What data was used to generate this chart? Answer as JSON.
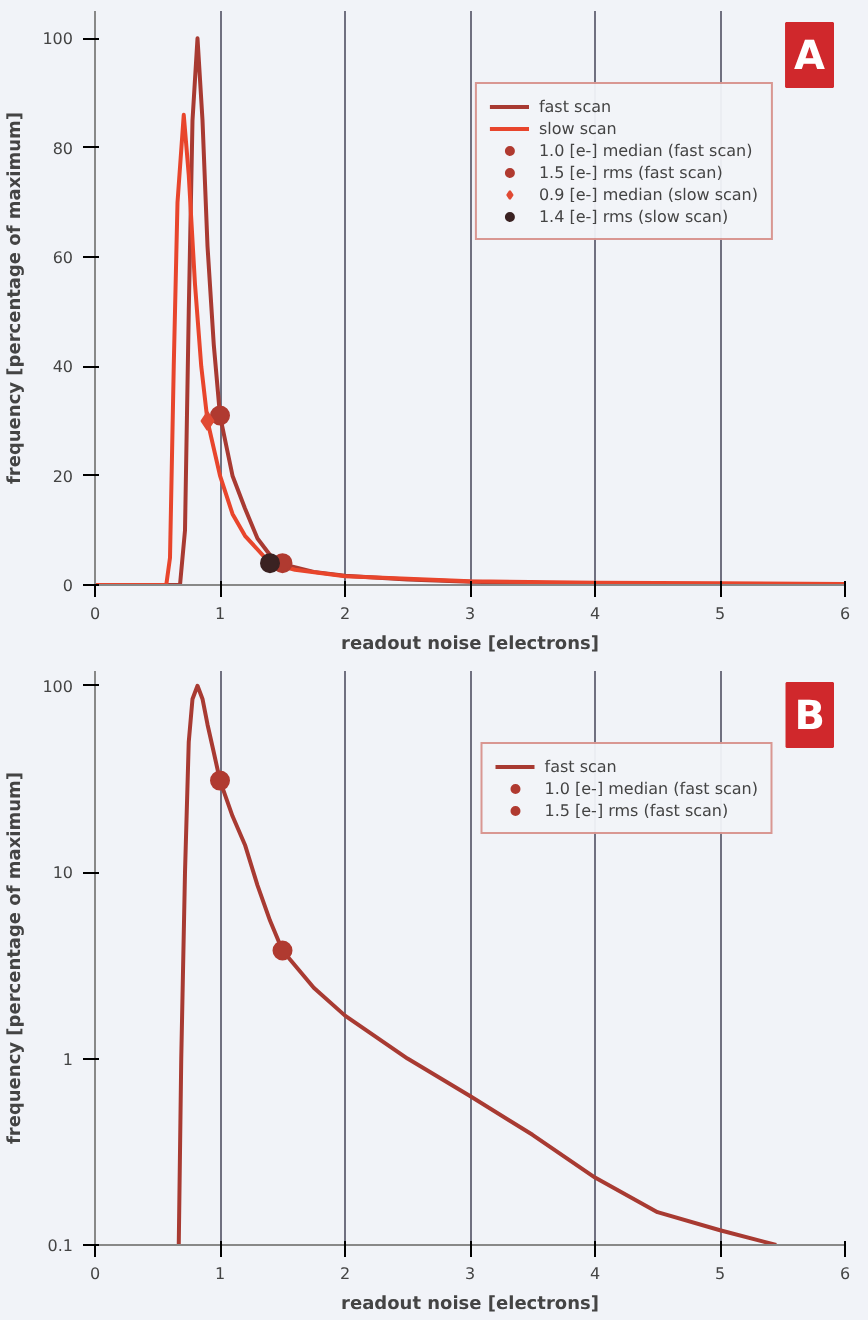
{
  "chart_data": [
    {
      "type": "line",
      "xlabel": "readout noise [electrons]",
      "ylabel": "frequency [percentage of maximum]",
      "annotations": [
        "A"
      ],
      "xlim": [
        0,
        6
      ],
      "xticks": [
        0,
        1,
        2,
        3,
        4,
        5,
        6
      ],
      "ylim": [
        0,
        105
      ],
      "yticks": [
        0,
        20,
        40,
        60,
        80,
        100
      ],
      "grid": "x",
      "legend": "top right",
      "series": [
        {
          "name": "fast scan",
          "color": "#a83a32",
          "x": [
            0,
            0.68,
            0.72,
            0.75,
            0.78,
            0.82,
            0.86,
            0.9,
            0.95,
            1.0,
            1.1,
            1.2,
            1.3,
            1.4,
            1.5,
            1.75,
            2.0,
            2.5,
            3.0,
            3.5,
            4.0
          ],
          "values": [
            0,
            0,
            10,
            50,
            85,
            100,
            85,
            62,
            44,
            31,
            20,
            14,
            8.5,
            5.5,
            3.8,
            2.4,
            1.7,
            1.0,
            0.6,
            0.4,
            0.2
          ]
        },
        {
          "name": "slow scan",
          "color": "#e8452c",
          "x": [
            0,
            0.57,
            0.6,
            0.63,
            0.66,
            0.71,
            0.75,
            0.8,
            0.85,
            0.9,
            1.0,
            1.1,
            1.2,
            1.4,
            1.6,
            2.0,
            3.0,
            4.0,
            5.0,
            6.0
          ],
          "values": [
            0,
            0,
            5,
            40,
            70,
            86,
            75,
            55,
            40,
            30,
            20,
            13,
            9,
            4,
            2.8,
            1.6,
            0.7,
            0.4,
            0.3,
            0.2
          ]
        },
        {
          "name": "1.0 [e-] median (fast scan)",
          "type": "scatter",
          "marker": "circle",
          "color": "#b03a30",
          "x": [
            1.0
          ],
          "values": [
            31
          ]
        },
        {
          "name": "1.5 [e-] rms (fast scan)",
          "type": "scatter",
          "marker": "circle",
          "color": "#b03a30",
          "x": [
            1.5
          ],
          "values": [
            4
          ]
        },
        {
          "name": "0.9 [e-] median (slow scan)",
          "type": "scatter",
          "marker": "diamond",
          "color": "#e04a34",
          "x": [
            0.9
          ],
          "values": [
            30
          ]
        },
        {
          "name": "1.4 [e-] rms (slow scan)",
          "type": "scatter",
          "marker": "circle",
          "color": "#3a2222",
          "x": [
            1.4
          ],
          "values": [
            4
          ]
        }
      ]
    },
    {
      "type": "line",
      "xlabel": "readout noise [electrons]",
      "ylabel": "frequency [percentage of maximum]",
      "annotations": [
        "B"
      ],
      "log": "y",
      "xlim": [
        0,
        6
      ],
      "xticks": [
        0,
        1,
        2,
        3,
        4,
        5,
        6
      ],
      "ylim": [
        0.1,
        120
      ],
      "yticks": [
        0.1,
        1,
        10,
        100
      ],
      "grid": "x",
      "legend": "top right",
      "series": [
        {
          "name": "fast scan",
          "color": "#a83a32",
          "x": [
            0.67,
            0.69,
            0.72,
            0.75,
            0.78,
            0.82,
            0.86,
            0.9,
            0.95,
            1.0,
            1.1,
            1.2,
            1.3,
            1.4,
            1.5,
            1.75,
            2.0,
            2.5,
            3.0,
            3.5,
            4.0,
            4.5,
            5.0,
            5.45
          ],
          "values": [
            0.1,
            1,
            10,
            50,
            85,
            100,
            85,
            62,
            44,
            31,
            20,
            14,
            8.5,
            5.5,
            3.8,
            2.4,
            1.7,
            1.0,
            0.63,
            0.39,
            0.23,
            0.15,
            0.12,
            0.1
          ]
        },
        {
          "name": "1.0 [e-] median (fast scan)",
          "type": "scatter",
          "marker": "circle",
          "color": "#b03a30",
          "x": [
            1.0
          ],
          "values": [
            31
          ]
        },
        {
          "name": "1.5 [e-] rms (fast scan)",
          "type": "scatter",
          "marker": "circle",
          "color": "#b03a30",
          "x": [
            1.5
          ],
          "values": [
            3.8
          ]
        }
      ]
    }
  ]
}
